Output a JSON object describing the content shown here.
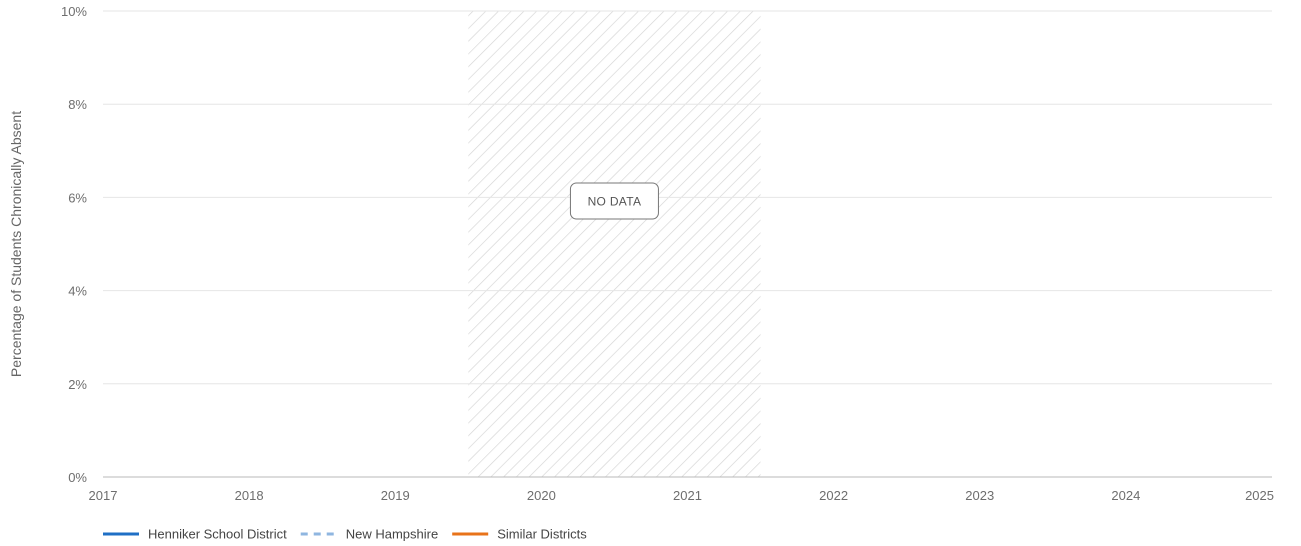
{
  "chart_data": {
    "type": "line",
    "title": "",
    "xlabel": "",
    "ylabel": "Percentage of Students Chronically Absent",
    "x_ticks": [
      "2017",
      "2018",
      "2019",
      "2020",
      "2021",
      "2022",
      "2023",
      "2024",
      "2025"
    ],
    "y_ticks": [
      "0%",
      "2%",
      "4%",
      "6%",
      "8%",
      "10%"
    ],
    "xlim": [
      2017,
      2025
    ],
    "ylim": [
      0,
      10
    ],
    "grid": "horizontal",
    "legend_placement": "bottom-left",
    "no_data_region": {
      "x_start": 2019.5,
      "x_end": 2021.5,
      "label": "NO DATA"
    },
    "series": [
      {
        "name": "Henniker School District",
        "color": "#1f6fc5",
        "style": "solid",
        "values": []
      },
      {
        "name": "New Hampshire",
        "color": "#8fb6e0",
        "style": "dashed",
        "values": []
      },
      {
        "name": "Similar Districts",
        "color": "#e8731a",
        "style": "solid",
        "values": []
      }
    ]
  }
}
